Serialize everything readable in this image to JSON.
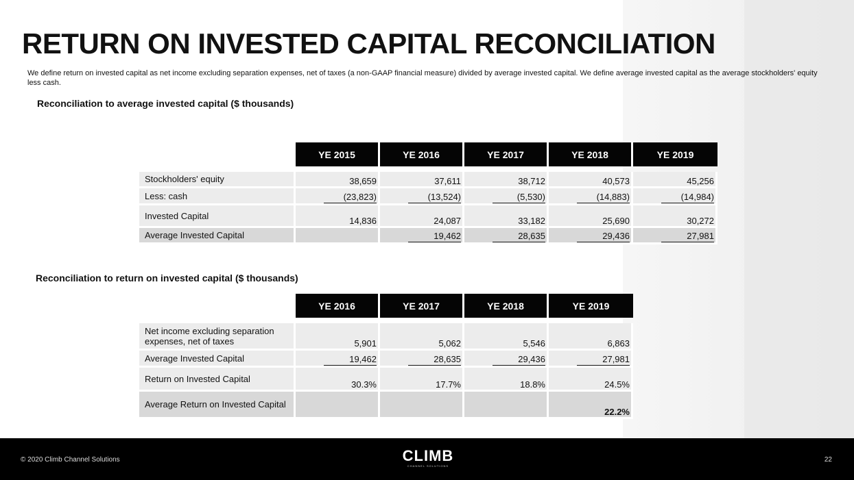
{
  "title": "RETURN ON INVESTED CAPITAL RECONCILIATION",
  "intro": "We define return on invested capital as net income excluding separation expenses, net of taxes (a non-GAAP financial measure) divided by average invested capital. We define average invested capital as the average stockholders' equity less cash.",
  "section1": {
    "title": "Reconciliation to average invested capital ($ thousands)",
    "headers": [
      "YE 2015",
      "YE 2016",
      "YE 2017",
      "YE 2018",
      "YE 2019"
    ],
    "rows": [
      {
        "label": "Stockholders' equity",
        "values": [
          "38,659",
          "37,611",
          "38,712",
          "40,573",
          "45,256"
        ]
      },
      {
        "label": "Less: cash",
        "values": [
          "(23,823)",
          "(13,524)",
          "(5,530)",
          "(14,883)",
          "(14,984)"
        ]
      },
      {
        "label": "Invested Capital",
        "values": [
          "14,836",
          "24,087",
          "33,182",
          "25,690",
          "30,272"
        ]
      },
      {
        "label": "Average Invested Capital",
        "values": [
          "",
          "19,462",
          "28,635",
          "29,436",
          "27,981"
        ]
      }
    ]
  },
  "section2": {
    "title": "Reconciliation to return on invested capital ($ thousands)",
    "headers": [
      "YE 2016",
      "YE 2017",
      "YE 2018",
      "YE 2019"
    ],
    "rows": [
      {
        "label": "Net income excluding separation expenses, net of taxes",
        "values": [
          "5,901",
          "5,062",
          "5,546",
          "6,863"
        ]
      },
      {
        "label": "Average Invested Capital",
        "values": [
          "19,462",
          "28,635",
          "29,436",
          "27,981"
        ]
      },
      {
        "label": "Return on Invested Capital",
        "values": [
          "30.3%",
          "17.7%",
          "18.8%",
          "24.5%"
        ]
      },
      {
        "label": "Average Return on Invested Capital",
        "values": [
          "",
          "",
          "",
          "22.2%"
        ]
      }
    ]
  },
  "footer": {
    "copyright": "© 2020 Climb Channel Solutions",
    "logo_main": "CLIMB",
    "logo_sub": "CHANNEL SOLUTIONS",
    "page": "22"
  }
}
